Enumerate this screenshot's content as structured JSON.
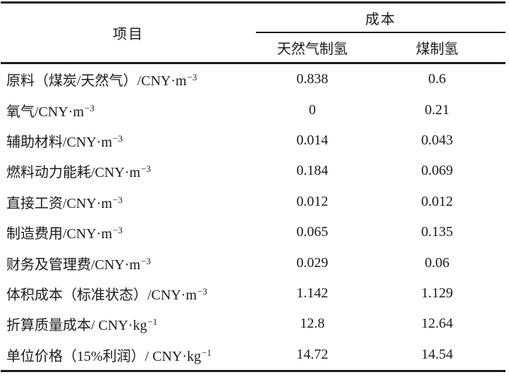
{
  "chart_data": {
    "type": "table",
    "header": {
      "item": "项目",
      "cost_group": "成本",
      "gas": "天然气制氢",
      "coal": "煤制氢"
    },
    "rows": [
      {
        "label": "原料（煤炭/天然气）/CNY·m",
        "sup": "−3",
        "gas": "0.838",
        "coal": "0.6"
      },
      {
        "label": "氧气/CNY·m",
        "sup": "−3",
        "gas": "0",
        "coal": "0.21"
      },
      {
        "label": "辅助材料/CNY·m",
        "sup": "−3",
        "gas": "0.014",
        "coal": "0.043"
      },
      {
        "label": "燃料动力能耗/CNY·m",
        "sup": "−3",
        "gas": "0.184",
        "coal": "0.069"
      },
      {
        "label": "直接工资/CNY·m",
        "sup": "−3",
        "gas": "0.012",
        "coal": "0.012"
      },
      {
        "label": "制造费用/CNY·m",
        "sup": "−3",
        "gas": "0.065",
        "coal": "0.135"
      },
      {
        "label": "财务及管理费/CNY·m",
        "sup": "−3",
        "gas": "0.029",
        "coal": "0.06"
      },
      {
        "label": "体积成本（标准状态）/CNY·m",
        "sup": "−3",
        "gas": "1.142",
        "coal": "1.129"
      },
      {
        "label": "折算质量成本/ CNY·kg",
        "sup": "−1",
        "gas": "12.8",
        "coal": "12.64"
      },
      {
        "label": "单位价格（15%利润）/ CNY·kg",
        "sup": "−1",
        "gas": "14.72",
        "coal": "14.54"
      }
    ]
  },
  "colors": {
    "text": "#1b1b1b",
    "rule": "#1b1b1b",
    "background": "#ffffff"
  }
}
